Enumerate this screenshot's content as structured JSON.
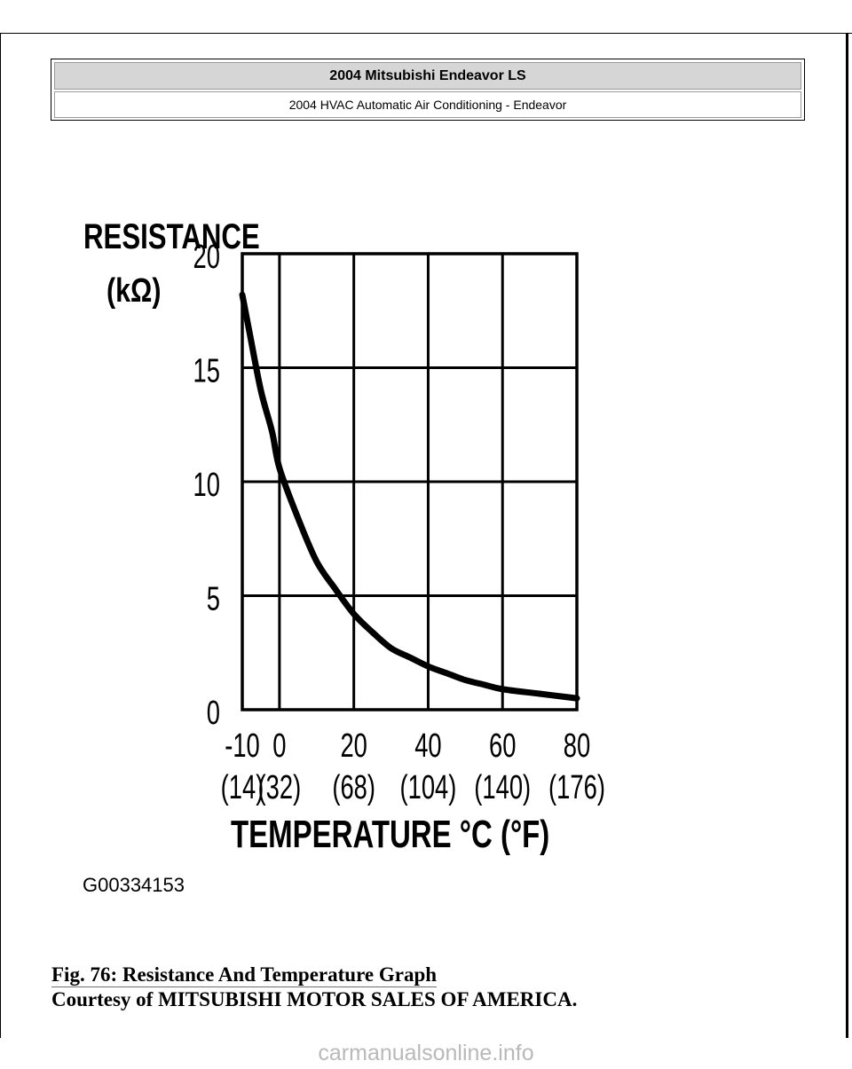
{
  "header": {
    "vehicle": "2004 Mitsubishi Endeavor LS",
    "section": "2004 HVAC Automatic Air Conditioning - Endeavor"
  },
  "figure": {
    "code": "G00334153"
  },
  "caption": {
    "title": "Fig. 76: Resistance And Temperature Graph",
    "credit": "Courtesy of MITSUBISHI MOTOR SALES OF AMERICA."
  },
  "watermark": "carmanualsonline.info",
  "chart_data": {
    "type": "line",
    "ylabel_line1": "RESISTANCE",
    "ylabel_line2": "(kΩ)",
    "xlabel": "TEMPERATURE °C (°F)",
    "x_ticks": [
      "-10",
      "0",
      "20",
      "40",
      "60",
      "80"
    ],
    "x_ticks_f": [
      "(14)",
      "(32)",
      "(68)",
      "(104)",
      "(140)",
      "(176)"
    ],
    "y_ticks": [
      "0",
      "5",
      "10",
      "15",
      "20"
    ],
    "xlim": [
      -10,
      80
    ],
    "ylim": [
      0,
      20
    ],
    "grid": true,
    "series": [
      {
        "x": [
          -10,
          -8,
          -5,
          -2,
          0,
          5,
          10,
          15,
          20,
          25,
          30,
          35,
          40,
          45,
          50,
          55,
          60,
          70,
          80
        ],
        "y": [
          18.2,
          16.5,
          14.0,
          12.2,
          10.6,
          8.4,
          6.5,
          5.3,
          4.2,
          3.4,
          2.7,
          2.3,
          1.9,
          1.6,
          1.3,
          1.1,
          0.9,
          0.7,
          0.5
        ]
      }
    ]
  }
}
